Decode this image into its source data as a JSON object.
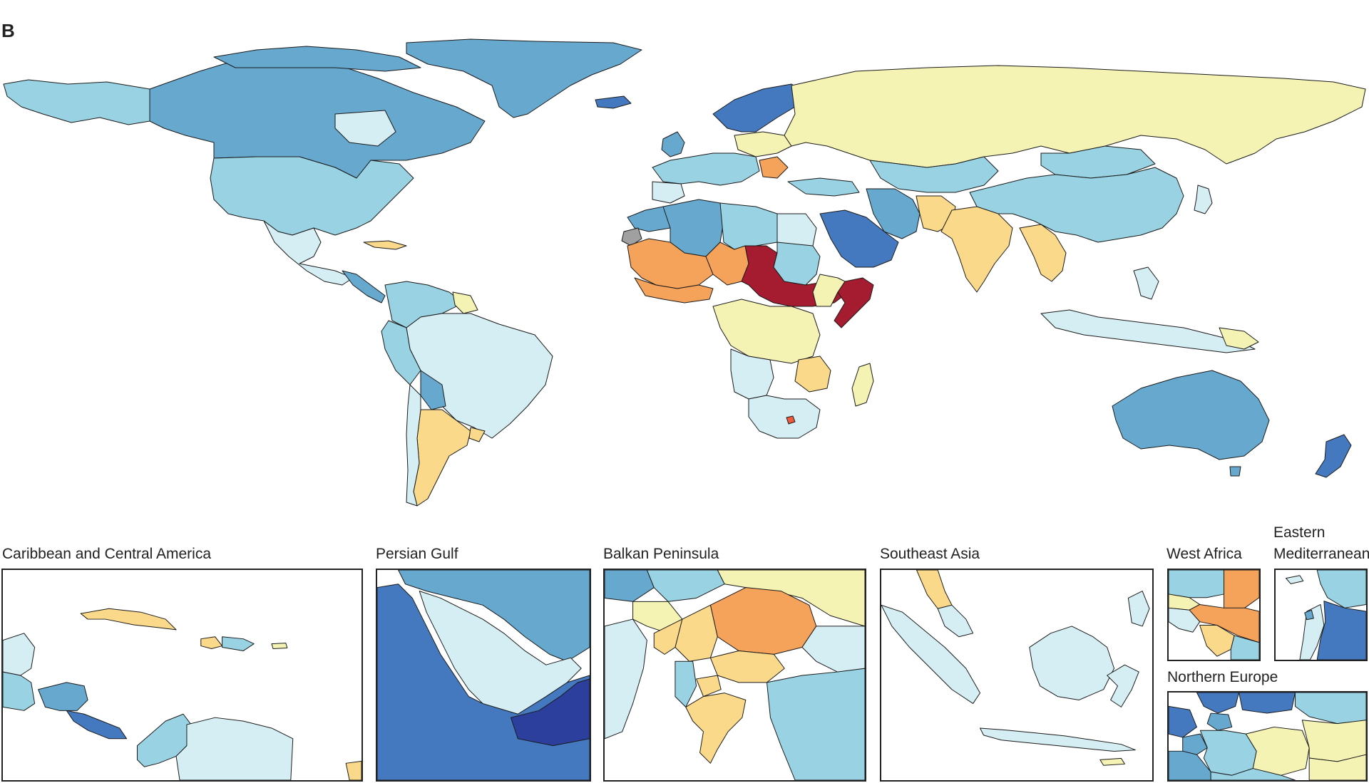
{
  "figure": {
    "panel_label": "B"
  },
  "palette": {
    "darkblue": "#2c3f9c",
    "blue": "#4479c0",
    "midblue": "#67a8cf",
    "lightblue": "#99d3e3",
    "paleblue": "#d4eef4",
    "paleyellow": "#f5f3b4",
    "yellow": "#fbd98a",
    "orange": "#f5a25b",
    "red": "#a51b2f",
    "nodata": "#a0a0a0",
    "coral": "#ee5a3d"
  },
  "insets": [
    {
      "id": "caribbean",
      "title": "Caribbean and Central America"
    },
    {
      "id": "persian_gulf",
      "title": "Persian Gulf"
    },
    {
      "id": "balkan",
      "title": "Balkan Peninsula"
    },
    {
      "id": "southeast_asia",
      "title": "Southeast Asia"
    },
    {
      "id": "west_africa",
      "title": "West Africa"
    },
    {
      "id": "eastern_med",
      "title": "Eastern\nMediterranean"
    },
    {
      "id": "northern_europe",
      "title": "Northern Europe"
    }
  ]
}
